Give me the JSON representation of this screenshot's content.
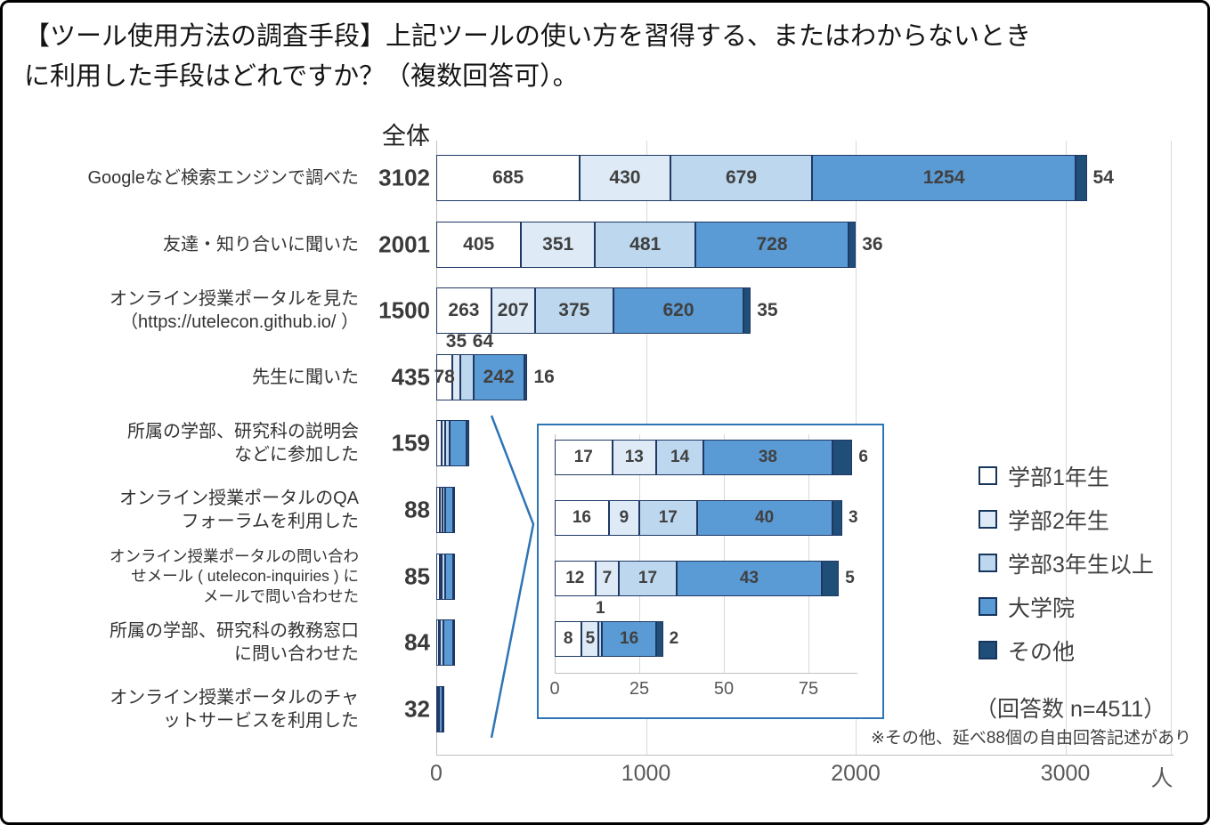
{
  "title": "【ツール使用方法の調査手段】上記ツールの使い方を習得する、またはわからないとき\nに利用した手段はどれですか？（複数回答可）。",
  "header": {
    "zentai": "全体"
  },
  "legend": {
    "items": [
      {
        "label": "学部1年生",
        "color": "#ffffff"
      },
      {
        "label": "学部2年生",
        "color": "#deebf7"
      },
      {
        "label": "学部3年生以上",
        "color": "#bdd7ee"
      },
      {
        "label": "大学院",
        "color": "#5b9bd5"
      },
      {
        "label": "その他",
        "color": "#1f4e79"
      }
    ],
    "response_count": "（回答数 n=4511）",
    "note": "※その他、延べ88個の自由回答記述があり"
  },
  "chart_data": {
    "type": "bar",
    "orientation": "horizontal",
    "stacked": true,
    "unit": "人",
    "series": [
      "学部1年生",
      "学部2年生",
      "学部3年生以上",
      "大学院",
      "その他"
    ],
    "series_colors": [
      "#ffffff",
      "#deebf7",
      "#bdd7ee",
      "#5b9bd5",
      "#1f4e79"
    ],
    "border_color": "#1f3864",
    "x_ticks": [
      0,
      1000,
      2000,
      3000
    ],
    "rows": [
      {
        "label": "Googleなど検索エンジンで調べた",
        "total": 3102,
        "values": [
          685,
          430,
          679,
          1254,
          54
        ],
        "label_pos": [
          "in",
          "in",
          "in",
          "in",
          "out"
        ]
      },
      {
        "label": "友達・知り合いに聞いた",
        "total": 2001,
        "values": [
          405,
          351,
          481,
          728,
          36
        ],
        "label_pos": [
          "in",
          "in",
          "in",
          "in",
          "out"
        ]
      },
      {
        "label": "オンライン授業ポータルを見た\n（https://utelecon.github.io/ ）",
        "total": 1500,
        "values": [
          263,
          207,
          375,
          620,
          35
        ],
        "label_pos": [
          "in",
          "in",
          "in",
          "in",
          "out"
        ]
      },
      {
        "label": "先生に聞いた",
        "total": 435,
        "values": [
          78,
          35,
          64,
          242,
          16
        ],
        "label_pos": [
          "in",
          "above",
          "above",
          "in",
          "out"
        ]
      },
      {
        "label": "所属の学部、研究科の説明会\nなどに参加した",
        "total": 159,
        "values": [
          25,
          18,
          22,
          80,
          14
        ],
        "label_pos": [
          "none",
          "none",
          "none",
          "none",
          "none"
        ]
      },
      {
        "label": "オンライン授業ポータルのQA\nフォーラムを利用した",
        "total": 88,
        "values": [
          17,
          13,
          14,
          38,
          6
        ],
        "label_pos": [
          "none",
          "none",
          "none",
          "none",
          "none"
        ]
      },
      {
        "label": "オンライン授業ポータルの問い合わ\nせメール ( utelecon-inquiries ) に\nメールで問い合わせた",
        "total": 85,
        "values": [
          16,
          9,
          17,
          40,
          3
        ],
        "label_pos": [
          "none",
          "none",
          "none",
          "none",
          "none"
        ],
        "small_label": true
      },
      {
        "label": "所属の学部、研究科の教務窓口\nに問い合わせた",
        "total": 84,
        "values": [
          12,
          7,
          17,
          43,
          5
        ],
        "label_pos": [
          "none",
          "none",
          "none",
          "none",
          "none"
        ]
      },
      {
        "label": "オンライン授業ポータルのチャ\nットサービスを利用した",
        "total": 32,
        "values": [
          8,
          5,
          1,
          16,
          2
        ],
        "label_pos": [
          "none",
          "none",
          "none",
          "none",
          "none"
        ]
      }
    ],
    "inset": {
      "x_ticks": [
        0,
        25,
        50,
        75
      ],
      "rows": [
        {
          "total": 88,
          "values": [
            17,
            13,
            14,
            38,
            6
          ],
          "label_pos": [
            "in",
            "in",
            "in",
            "in",
            "out"
          ]
        },
        {
          "total": 85,
          "values": [
            16,
            9,
            17,
            40,
            3
          ],
          "label_pos": [
            "in",
            "in",
            "in",
            "in",
            "out"
          ]
        },
        {
          "total": 84,
          "values": [
            12,
            7,
            17,
            43,
            5
          ],
          "label_pos": [
            "in",
            "in",
            "in",
            "in",
            "out"
          ]
        },
        {
          "total": 32,
          "values": [
            8,
            5,
            1,
            16,
            2
          ],
          "label_pos": [
            "in",
            "in",
            "above",
            "in",
            "out"
          ]
        }
      ]
    }
  }
}
